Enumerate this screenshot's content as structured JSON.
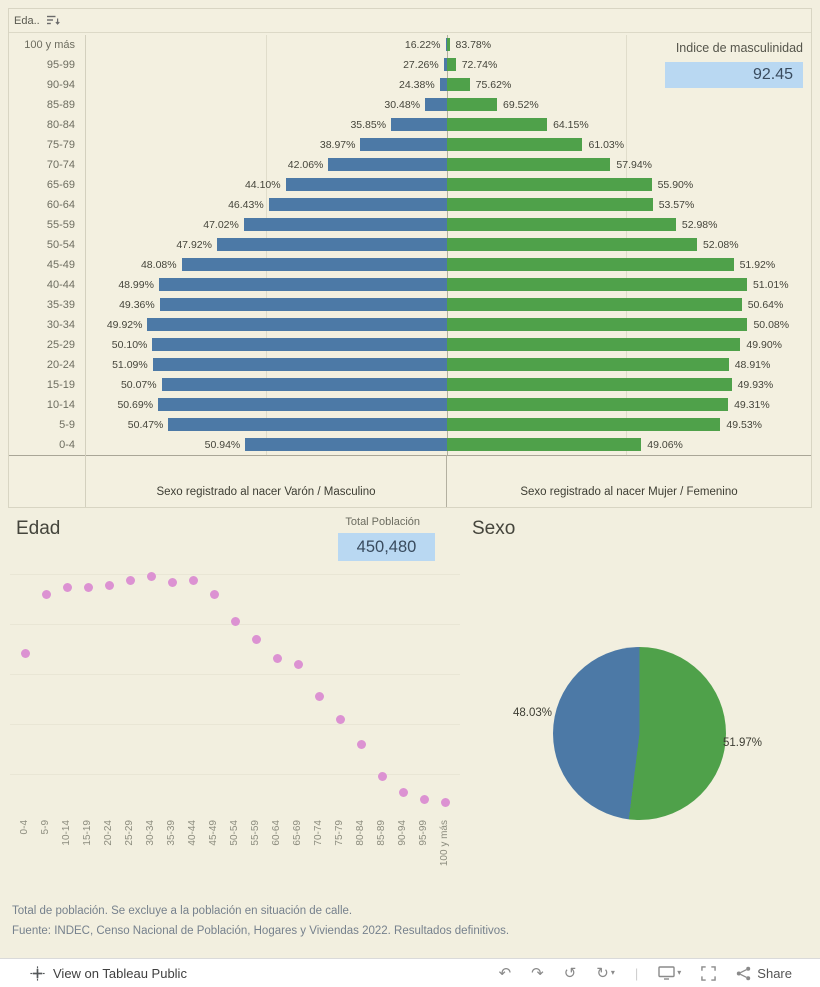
{
  "pyramid": {
    "field_pill_label": "Eda..",
    "indice_label": "Indice de masculinidad",
    "indice_value": "92.45",
    "footer_left": "Sexo registrado al nacer Varón / Masculino",
    "footer_right": "Sexo registrado al nacer Mujer / Femenino"
  },
  "edad_panel": {
    "title": "Edad",
    "total_label": "Total Población",
    "total_value": "450,480"
  },
  "sexo_panel": {
    "title": "Sexo",
    "left_slice_label": "48.03%",
    "right_slice_label": "51.97%"
  },
  "footnotes": {
    "line1": "Total de población. Se excluye a la población en situación de calle.",
    "line2": "Fuente: INDEC, Censo Nacional de Población, Hogares y Viviendas 2022. Resultados definitivos."
  },
  "toolbar": {
    "view_on_label": "View on Tableau Public",
    "share_label": "Share",
    "icons": {
      "undo": "↶",
      "redo": "↷",
      "reset": "↺",
      "refresh": "↻",
      "caret_down": "▾",
      "divider": "|"
    }
  },
  "colors": {
    "male_blue": "#4c79a6",
    "female_green": "#4fa14a",
    "dot_pink": "#dc92d2",
    "highlight_blue_bg": "#b9d8f2",
    "page_beige": "#f2efdf"
  },
  "chart_data": [
    {
      "type": "bar",
      "subtype": "population_pyramid",
      "orientation": "diverging-horizontal",
      "categories": [
        "100 y más",
        "95-99",
        "90-94",
        "85-89",
        "80-84",
        "75-79",
        "70-74",
        "65-69",
        "60-64",
        "55-59",
        "50-54",
        "45-49",
        "40-44",
        "35-39",
        "30-34",
        "25-29",
        "20-24",
        "15-19",
        "10-14",
        "5-9",
        "0-4"
      ],
      "series": [
        {
          "name": "Sexo registrado al nacer Varón / Masculino",
          "color": "#4c79a6",
          "pct_within_age": [
            16.22,
            27.26,
            24.38,
            30.48,
            35.85,
            38.97,
            42.06,
            44.1,
            46.43,
            47.02,
            47.92,
            48.08,
            48.99,
            49.36,
            49.92,
            50.1,
            51.09,
            50.07,
            50.69,
            50.47,
            50.94
          ]
        },
        {
          "name": "Sexo registrado al nacer Mujer / Femenino",
          "color": "#4fa14a",
          "pct_within_age": [
            83.78,
            72.74,
            75.62,
            69.52,
            64.15,
            61.03,
            57.94,
            55.9,
            53.57,
            52.98,
            52.08,
            51.92,
            51.01,
            50.64,
            50.08,
            49.9,
            48.91,
            49.93,
            49.31,
            49.53,
            49.06
          ]
        }
      ],
      "age_group_relative_population": [
        0.005,
        0.02,
        0.05,
        0.12,
        0.26,
        0.37,
        0.47,
        0.61,
        0.64,
        0.72,
        0.8,
        0.92,
        0.98,
        0.97,
        1.0,
        0.98,
        0.96,
        0.95,
        0.95,
        0.92,
        0.66
      ],
      "bar_length_note": "bar length proportional to estimated population of each age group; labels show sex split % within age group",
      "annotations": {
        "indice_de_masculinidad": 92.45
      },
      "grid": true,
      "legend_position": "column-footers"
    },
    {
      "type": "scatter",
      "title": "Edad",
      "x": [
        "0-4",
        "5-9",
        "10-14",
        "15-19",
        "20-24",
        "25-29",
        "30-34",
        "35-39",
        "40-44",
        "45-49",
        "50-54",
        "55-59",
        "60-64",
        "65-69",
        "70-74",
        "75-79",
        "80-84",
        "85-89",
        "90-94",
        "95-99",
        "100 y más"
      ],
      "y_relative": [
        0.66,
        0.92,
        0.95,
        0.95,
        0.96,
        0.98,
        1.0,
        0.97,
        0.98,
        0.92,
        0.8,
        0.72,
        0.64,
        0.61,
        0.47,
        0.37,
        0.26,
        0.12,
        0.05,
        0.02,
        0.005
      ],
      "ylabel": "",
      "y_axis_labeled": false,
      "marker_color": "#dc92d2",
      "total_poblacion": 450480
    },
    {
      "type": "pie",
      "title": "Sexo",
      "slices": [
        {
          "label": "48.03%",
          "value": 48.03,
          "color": "#4c79a6",
          "side": "left"
        },
        {
          "label": "51.97%",
          "value": 51.97,
          "color": "#4fa14a",
          "side": "right"
        }
      ],
      "start_angle_deg": 0,
      "direction": "clockwise-from-top, green slice first"
    }
  ]
}
